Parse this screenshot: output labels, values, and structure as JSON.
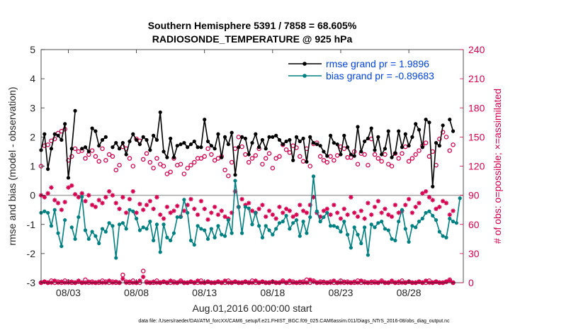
{
  "chart_data": {
    "type": "line",
    "title": "Southern Hemisphere 5391 / 7858 = 68.605%",
    "subtitle": "RADIOSONDE_TEMPERATURE @ 925 hPa",
    "xlabel": "Aug.01,2016 00:00:00 start",
    "ylabel": "rmse and bias (model - observation)",
    "y2label": "# of obs: o=possible; ×=assimilated",
    "footnote": "data file: /Users/raeder/DAI/ATM_forcXX/CAM6_setup/f.e21.FHIST_BGC.f09_025.CAM6assim.011/Diags_NTrS_2016-08/obs_diag_output.nc",
    "x_ticks": [
      "08/03",
      "08/08",
      "08/13",
      "08/18",
      "08/23",
      "08/28"
    ],
    "x_tick_days": [
      3,
      8,
      13,
      18,
      23,
      28
    ],
    "xlim_days": [
      1,
      32
    ],
    "ylim": [
      -3,
      5
    ],
    "y_ticks": [
      -3,
      -2,
      -1,
      0,
      1,
      2,
      3,
      4,
      5
    ],
    "y2lim": [
      0,
      240
    ],
    "y2_ticks": [
      0,
      30,
      60,
      90,
      120,
      150,
      180,
      210,
      240
    ],
    "legend_position": "top-right",
    "grid": false,
    "colors": {
      "rmse": "#000000",
      "bias": "#008080",
      "counts": "#d6004f",
      "zero_line": "#a6a6a6",
      "legend_text": "#0044dd"
    },
    "rmse_series_name": "rmse grand pr = 1.9896",
    "bias_series_name": "bias grand pr = -0.89683",
    "rmse_day_start": 1,
    "bias_day_start": 1,
    "counts_day_start": 1,
    "day_step": 0.25,
    "rmse": [
      1.55,
      2.1,
      0.9,
      1.6,
      2.1,
      2.05,
      1.9,
      2.45,
      0.6,
      1.6,
      2.9,
      null,
      1.6,
      1.65,
      1.5,
      2.3,
      2.2,
      1.7,
      1.9,
      2.0,
      null,
      1.65,
      1.8,
      1.6,
      1.8,
      1.4,
      1.85,
      2.1,
      1.9,
      1.75,
      2.0,
      1.9,
      1.55,
      2.05,
      1.9,
      2.85,
      1.5,
      1.3,
      1.95,
      1.3,
      1.7,
      1.75,
      1.8,
      1.65,
      1.75,
      1.85,
      1.65,
      1.65,
      2.6,
      1.85,
      1.7,
      1.6,
      2.1,
      1.3,
      2.0,
      1.75,
      2.15,
      0.7,
      1.65,
      2.0,
      1.95,
      1.4,
      1.8,
      2.1,
      1.65,
      1.9,
      1.6,
      2.0,
      2.0,
      2.05,
      1.9,
      1.75,
      1.85,
      1.9,
      1.2,
      2.0,
      1.85,
      1.95,
      1.15,
      2.0,
      1.8,
      1.75,
      1.7,
      1.5,
      1.35,
      2.05,
      1.8,
      1.75,
      1.4,
      2.05,
      1.65,
      1.4,
      1.35,
      2.35,
      1.5,
      1.85,
      1.95,
      2.3,
      1.55,
      2.0,
      1.4,
      1.6,
      2.2,
      1.3,
      1.45,
      2.2,
      1.65,
      2.1,
      1.7,
      2.0,
      2.45,
      2.25,
      1.65,
      2.6,
      2.5,
      0.3,
      1.8,
      1.7,
      2.4,
      null,
      2.6,
      2.2
    ],
    "bias": [
      -0.6,
      -0.55,
      -0.6,
      -1.05,
      -0.5,
      -1.3,
      -1.75,
      -0.85,
      null,
      -1.1,
      -1.5,
      -0.75,
      -0.05,
      -1.2,
      -1.5,
      -1.25,
      -1.4,
      -1.65,
      -1.15,
      -1.25,
      -0.95,
      -1.05,
      -2.15,
      -1.0,
      -0.95,
      -1.15,
      -0.5,
      -0.55,
      -0.8,
      -1.2,
      -1.1,
      -1.15,
      -0.9,
      -1.55,
      -1.0,
      -1.95,
      -1.0,
      -1.45,
      -1.55,
      -1.3,
      -0.75,
      -0.75,
      -0.15,
      -0.6,
      -1.55,
      -1.7,
      -1.05,
      -1.15,
      -1.2,
      -1.5,
      -1.15,
      -1.45,
      -1.05,
      -1.35,
      -1.4,
      -0.85,
      -1.3,
      0.5,
      -0.4,
      -1.3,
      -0.4,
      -0.45,
      -1.0,
      -0.6,
      -1.05,
      -1.45,
      -1.05,
      -1.2,
      -1.35,
      -1.15,
      -0.95,
      -0.9,
      -0.7,
      -1.15,
      -0.95,
      -0.85,
      -1.4,
      -0.9,
      -1.3,
      -0.75,
      0.65,
      -0.55,
      -0.9,
      -0.75,
      -0.6,
      -1.05,
      -1.05,
      -1.1,
      -1.25,
      -0.9,
      -1.35,
      -1.8,
      -1.1,
      -1.35,
      -1.65,
      -1.1,
      -2.05,
      -1.0,
      -1.1,
      -0.95,
      -0.9,
      -1.15,
      -1.2,
      -1.5,
      -1.55,
      -0.9,
      -0.5,
      -1.15,
      -1.6,
      -1.05,
      -1.1,
      -0.9,
      -0.8,
      -0.6,
      -0.55,
      -0.7,
      -0.85,
      -1.25,
      -1.4,
      -1.45,
      -0.8,
      -0.9,
      -0.95,
      -0.1
    ],
    "possible": [
      120,
      141,
      142,
      146,
      148,
      154,
      156,
      158,
      126,
      130,
      138,
      135,
      136,
      128,
      132,
      136,
      130,
      125,
      138,
      126,
      132,
      130,
      116,
      121,
      140,
      138,
      128,
      120,
      148,
      146,
      127,
      133,
      124,
      118,
      128,
      122,
      120,
      112,
      114,
      128,
      121,
      122,
      112,
      118,
      121,
      124,
      128,
      128,
      130,
      138,
      132,
      126,
      128,
      130,
      116,
      110,
      124,
      138,
      150,
      140,
      132,
      124,
      128,
      131,
      138,
      122,
      128,
      133,
      118,
      128,
      130,
      142,
      137,
      134,
      141,
      139,
      130,
      125,
      138,
      120,
      143,
      144,
      130,
      126,
      124,
      130,
      126,
      131,
      140,
      138,
      129,
      129,
      135,
      122,
      133,
      132,
      121,
      148,
      132,
      128,
      125,
      132,
      122,
      120,
      133,
      128,
      133,
      140,
      125,
      128,
      132,
      136,
      141,
      144,
      130,
      135,
      121,
      148,
      155,
      150,
      136,
      142
    ],
    "assimilated": [
      90,
      88,
      92,
      98,
      85,
      82,
      75,
      83,
      98,
      100,
      91,
      88,
      92,
      84,
      90,
      80,
      78,
      85,
      82,
      88,
      94,
      90,
      82,
      76,
      88,
      72,
      86,
      94,
      72,
      81,
      75,
      80,
      84,
      76,
      88,
      70,
      66,
      78,
      72,
      74,
      79,
      68,
      74,
      80,
      86,
      76,
      70,
      84,
      76,
      65,
      72,
      78,
      70,
      74,
      68,
      66,
      72,
      94,
      78,
      86,
      80,
      82,
      74,
      72,
      76,
      80,
      68,
      74,
      70,
      66,
      78,
      72,
      76,
      74,
      68,
      70,
      80,
      74,
      72,
      80,
      88,
      72,
      68,
      74,
      76,
      70,
      80,
      72,
      66,
      76,
      70,
      88,
      72,
      68,
      74,
      66,
      82,
      70,
      78,
      84,
      72,
      76,
      70,
      68,
      80,
      72,
      74,
      80,
      86,
      72,
      78,
      82,
      92,
      94,
      88,
      85,
      76,
      78,
      84,
      82,
      70,
      74
    ],
    "possible_low": [
      0,
      1,
      0,
      2,
      0,
      1,
      0,
      2,
      1,
      0,
      0,
      1,
      0,
      3,
      0,
      1,
      0,
      0,
      2,
      1,
      0,
      1,
      0,
      0,
      8,
      1,
      0,
      2,
      0,
      0,
      12,
      1,
      0,
      0,
      2,
      0,
      1,
      0,
      0,
      1,
      0,
      2,
      0,
      0,
      1,
      0,
      0,
      2,
      0,
      1,
      0,
      0,
      1,
      0,
      0,
      2,
      0,
      1,
      0,
      0,
      1,
      0,
      2,
      0,
      0,
      1,
      0,
      0,
      1,
      0,
      0,
      2,
      0,
      0,
      1,
      0,
      0,
      1,
      3,
      0,
      2,
      0,
      1,
      0,
      0,
      1,
      0,
      0,
      2,
      0,
      1,
      0,
      0,
      2,
      0,
      1,
      0,
      0,
      1,
      0,
      2,
      0,
      0,
      1,
      0,
      0,
      2,
      0,
      1,
      0,
      0,
      1,
      0,
      0,
      2,
      0,
      1,
      0,
      0,
      1,
      3,
      0
    ],
    "assimilated_low": [
      0,
      1,
      0,
      0,
      2,
      0,
      1,
      0,
      0,
      1,
      0,
      2,
      0,
      0,
      1,
      0,
      0,
      1,
      0,
      0,
      2,
      0,
      1,
      0,
      4,
      0,
      1,
      0,
      0,
      2,
      6,
      0,
      0,
      1,
      0,
      0,
      1,
      0,
      2,
      0,
      0,
      1,
      0,
      0,
      1,
      0,
      2,
      0,
      0,
      1,
      0,
      0,
      1,
      0,
      2,
      0,
      0,
      1,
      0,
      0,
      1,
      0,
      0,
      2,
      0,
      1,
      0,
      0,
      1,
      0,
      0,
      1,
      0,
      2,
      0,
      0,
      1,
      0,
      0,
      3,
      1,
      0,
      0,
      1,
      0,
      0,
      2,
      0,
      0,
      1,
      0,
      0,
      1,
      0,
      2,
      0,
      0,
      1,
      0,
      0,
      1,
      0,
      0,
      2,
      0,
      1,
      0,
      0,
      1,
      0,
      0,
      1,
      0,
      2,
      0,
      0,
      1,
      0,
      0,
      1,
      2,
      0
    ]
  }
}
